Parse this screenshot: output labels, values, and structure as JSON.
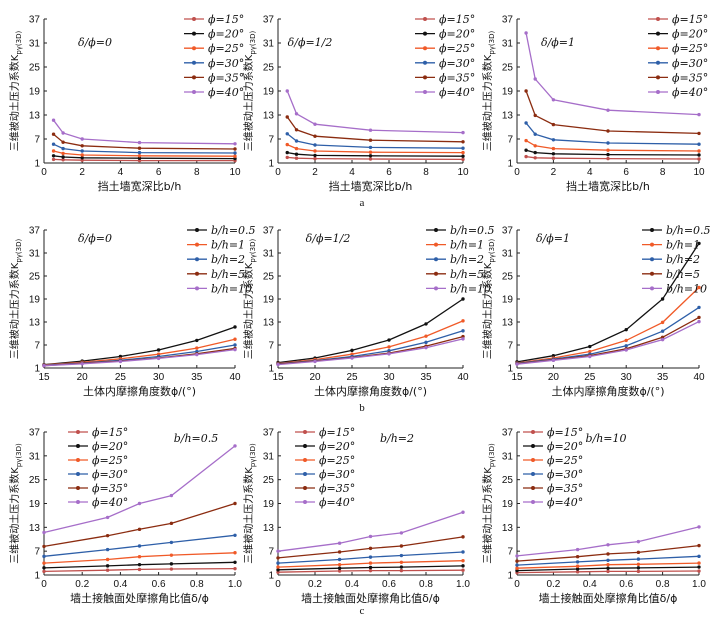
{
  "colors": {
    "s15": "#c0504d",
    "s20": "#111111",
    "s25": "#f05a28",
    "s30": "#2e5fa8",
    "s35": "#8b2c10",
    "s40": "#a66ec9",
    "bh05": "#111111",
    "bh1": "#f05a28",
    "bh2": "#2e5fa8",
    "bh5": "#8b2c10",
    "bh10": "#a66ec9",
    "axis": "#222222"
  },
  "subfigure_labels": [
    "a",
    "b",
    "c"
  ],
  "chart_data": [
    {
      "type": "line",
      "row": "a",
      "annotation": "δ/ϕ=0",
      "ylabel": "三维被动土压力系数K_pγ(3D)",
      "xlabel": "挡土墙宽深比b/h",
      "xlim": [
        0,
        10
      ],
      "ylim": [
        1,
        37
      ],
      "xticks": [
        0,
        2,
        4,
        6,
        8,
        10
      ],
      "yticks": [
        1,
        7,
        13,
        19,
        25,
        31,
        37
      ],
      "x": [
        0.5,
        1,
        2,
        5,
        10
      ],
      "series": [
        {
          "name": "ϕ=15°",
          "color_key": "s15",
          "values": [
            1.9,
            1.8,
            1.7,
            1.6,
            1.6
          ]
        },
        {
          "name": "ϕ=20°",
          "color_key": "s20",
          "values": [
            2.8,
            2.5,
            2.3,
            2.2,
            2.1
          ]
        },
        {
          "name": "ϕ=25°",
          "color_key": "s25",
          "values": [
            4.0,
            3.4,
            3.0,
            2.8,
            2.7
          ]
        },
        {
          "name": "ϕ=30°",
          "color_key": "s30",
          "values": [
            5.7,
            4.6,
            4.0,
            3.6,
            3.5
          ]
        },
        {
          "name": "ϕ=35°",
          "color_key": "s35",
          "values": [
            8.2,
            6.2,
            5.3,
            4.7,
            4.5
          ]
        },
        {
          "name": "ϕ=40°",
          "color_key": "s40",
          "values": [
            11.7,
            8.5,
            7.0,
            6.1,
            5.8
          ]
        }
      ]
    },
    {
      "type": "line",
      "row": "a",
      "annotation": "δ/ϕ=1/2",
      "ylabel": "三维被动土压力系数K_pγ(3D)",
      "xlabel": "挡土墙宽深比b/h",
      "xlim": [
        0,
        10
      ],
      "ylim": [
        1,
        37
      ],
      "xticks": [
        0,
        2,
        4,
        6,
        8,
        10
      ],
      "yticks": [
        1,
        7,
        13,
        19,
        25,
        31,
        37
      ],
      "x": [
        0.5,
        1,
        2,
        5,
        10
      ],
      "series": [
        {
          "name": "ϕ=15°",
          "color_key": "s15",
          "values": [
            2.4,
            2.2,
            2.1,
            2.0,
            1.9
          ]
        },
        {
          "name": "ϕ=20°",
          "color_key": "s20",
          "values": [
            3.6,
            3.2,
            2.9,
            2.8,
            2.7
          ]
        },
        {
          "name": "ϕ=25°",
          "color_key": "s25",
          "values": [
            5.6,
            4.6,
            4.0,
            3.7,
            3.6
          ]
        },
        {
          "name": "ϕ=30°",
          "color_key": "s30",
          "values": [
            8.3,
            6.5,
            5.5,
            4.9,
            4.7
          ]
        },
        {
          "name": "ϕ=35°",
          "color_key": "s35",
          "values": [
            12.5,
            9.3,
            7.7,
            6.7,
            6.3
          ]
        },
        {
          "name": "ϕ=40°",
          "color_key": "s40",
          "values": [
            19.0,
            13.3,
            10.7,
            9.2,
            8.6
          ]
        }
      ]
    },
    {
      "type": "line",
      "row": "a",
      "annotation": "δ/ϕ=1",
      "ylabel": "三维被动土压力系数K_pγ(3D)",
      "xlabel": "挡土墙宽深比b/h",
      "xlim": [
        0,
        10
      ],
      "ylim": [
        1,
        37
      ],
      "xticks": [
        0,
        2,
        4,
        6,
        8,
        10
      ],
      "yticks": [
        1,
        7,
        13,
        19,
        25,
        31,
        37
      ],
      "x": [
        0.5,
        1,
        2,
        5,
        10
      ],
      "series": [
        {
          "name": "ϕ=15°",
          "color_key": "s15",
          "values": [
            2.6,
            2.3,
            2.2,
            2.1,
            2.0
          ]
        },
        {
          "name": "ϕ=20°",
          "color_key": "s20",
          "values": [
            4.2,
            3.6,
            3.3,
            3.1,
            3.0
          ]
        },
        {
          "name": "ϕ=25°",
          "color_key": "s25",
          "values": [
            6.6,
            5.3,
            4.6,
            4.2,
            4.0
          ]
        },
        {
          "name": "ϕ=30°",
          "color_key": "s30",
          "values": [
            11.0,
            8.2,
            6.8,
            6.0,
            5.7
          ]
        },
        {
          "name": "ϕ=35°",
          "color_key": "s35",
          "values": [
            19.0,
            12.9,
            10.6,
            9.0,
            8.4
          ]
        },
        {
          "name": "ϕ=40°",
          "color_key": "s40",
          "values": [
            33.5,
            22.0,
            16.8,
            14.2,
            13.1
          ]
        }
      ]
    },
    {
      "type": "line",
      "row": "b",
      "annotation": "δ/ϕ=0",
      "ylabel": "三维被动土压力系数K_pγ(3D)",
      "xlabel": "土体内摩擦角度数ϕ/(°)",
      "xlim": [
        15,
        40
      ],
      "ylim": [
        1,
        37
      ],
      "xticks": [
        15,
        20,
        25,
        30,
        35,
        40
      ],
      "yticks": [
        1,
        7,
        13,
        19,
        25,
        31,
        37
      ],
      "x": [
        15,
        20,
        25,
        30,
        35,
        40
      ],
      "series": [
        {
          "name": "b/h=0.5",
          "color_key": "bh05",
          "values": [
            1.9,
            2.8,
            4.0,
            5.7,
            8.2,
            11.7
          ]
        },
        {
          "name": "b/h=1",
          "color_key": "bh1",
          "values": [
            1.8,
            2.5,
            3.4,
            4.6,
            6.2,
            8.5
          ]
        },
        {
          "name": "b/h=2",
          "color_key": "bh2",
          "values": [
            1.7,
            2.3,
            3.0,
            4.0,
            5.3,
            7.0
          ]
        },
        {
          "name": "b/h=5",
          "color_key": "bh5",
          "values": [
            1.6,
            2.2,
            2.8,
            3.6,
            4.7,
            6.1
          ]
        },
        {
          "name": "b/h=10",
          "color_key": "bh10",
          "values": [
            1.6,
            2.1,
            2.7,
            3.5,
            4.5,
            5.8
          ]
        }
      ]
    },
    {
      "type": "line",
      "row": "b",
      "annotation": "δ/ϕ=1/2",
      "ylabel": "三维被动土压力系数K_pγ(3D)",
      "xlabel": "土体内摩擦角度数ϕ/(°)",
      "xlim": [
        15,
        40
      ],
      "ylim": [
        1,
        37
      ],
      "xticks": [
        15,
        20,
        25,
        30,
        35,
        40
      ],
      "yticks": [
        1,
        7,
        13,
        19,
        25,
        31,
        37
      ],
      "x": [
        15,
        20,
        25,
        30,
        35,
        40
      ],
      "series": [
        {
          "name": "b/h=0.5",
          "color_key": "bh05",
          "values": [
            2.4,
            3.6,
            5.6,
            8.3,
            12.5,
            19.0
          ]
        },
        {
          "name": "b/h=1",
          "color_key": "bh1",
          "values": [
            2.2,
            3.2,
            4.6,
            6.5,
            9.3,
            13.3
          ]
        },
        {
          "name": "b/h=2",
          "color_key": "bh2",
          "values": [
            2.1,
            2.9,
            4.0,
            5.5,
            7.7,
            10.7
          ]
        },
        {
          "name": "b/h=5",
          "color_key": "bh5",
          "values": [
            2.0,
            2.8,
            3.7,
            4.9,
            6.7,
            9.2
          ]
        },
        {
          "name": "b/h=10",
          "color_key": "bh10",
          "values": [
            1.9,
            2.7,
            3.6,
            4.7,
            6.3,
            8.6
          ]
        }
      ]
    },
    {
      "type": "line",
      "row": "b",
      "annotation": "δ/ϕ=1",
      "ylabel": "三维被动土压力系数K_pγ(3D)",
      "xlabel": "土体内摩擦角度数ϕ/(°)",
      "xlim": [
        15,
        40
      ],
      "ylim": [
        1,
        37
      ],
      "xticks": [
        15,
        20,
        25,
        30,
        35,
        40
      ],
      "yticks": [
        1,
        7,
        13,
        19,
        25,
        31,
        37
      ],
      "x": [
        15,
        20,
        25,
        30,
        35,
        40
      ],
      "series": [
        {
          "name": "b/h=0.5",
          "color_key": "bh05",
          "values": [
            2.6,
            4.2,
            6.6,
            11.0,
            19.0,
            33.5
          ]
        },
        {
          "name": "b/h=1",
          "color_key": "bh1",
          "values": [
            2.3,
            3.6,
            5.3,
            8.2,
            12.9,
            22.0
          ]
        },
        {
          "name": "b/h=2",
          "color_key": "bh2",
          "values": [
            2.2,
            3.3,
            4.6,
            6.8,
            10.6,
            16.8
          ]
        },
        {
          "name": "b/h=5",
          "color_key": "bh5",
          "values": [
            2.1,
            3.1,
            4.2,
            6.0,
            9.0,
            14.2
          ]
        },
        {
          "name": "b/h=10",
          "color_key": "bh10",
          "values": [
            2.0,
            3.0,
            4.0,
            5.7,
            8.4,
            13.1
          ]
        }
      ]
    },
    {
      "type": "line",
      "row": "c",
      "annotation": "b/h=0.5",
      "ylabel": "三维被动土压力系数K_pγ(3D)",
      "xlabel": "墙土接触面处摩擦角比值δ/ϕ",
      "xlim": [
        0,
        1
      ],
      "ylim": [
        1,
        37
      ],
      "xticks": [
        0,
        0.2,
        0.4,
        0.6,
        0.8,
        1.0
      ],
      "xtick_labels": [
        "0",
        "0.2",
        "0.4",
        "0.6",
        "0.8",
        "1.0"
      ],
      "yticks": [
        1,
        7,
        13,
        19,
        25,
        31,
        37
      ],
      "x": [
        0,
        0.333,
        0.5,
        0.667,
        1
      ],
      "series": [
        {
          "name": "ϕ=15°",
          "color_key": "s15",
          "values": [
            1.9,
            2.2,
            2.4,
            2.5,
            2.6
          ]
        },
        {
          "name": "ϕ=20°",
          "color_key": "s20",
          "values": [
            2.8,
            3.3,
            3.6,
            3.8,
            4.2
          ]
        },
        {
          "name": "ϕ=25°",
          "color_key": "s25",
          "values": [
            4.0,
            4.9,
            5.6,
            6.0,
            6.6
          ]
        },
        {
          "name": "ϕ=30°",
          "color_key": "s30",
          "values": [
            5.7,
            7.4,
            8.3,
            9.2,
            11.0
          ]
        },
        {
          "name": "ϕ=35°",
          "color_key": "s35",
          "values": [
            8.2,
            10.9,
            12.5,
            14.0,
            19.0
          ]
        },
        {
          "name": "ϕ=40°",
          "color_key": "s40",
          "values": [
            11.7,
            15.5,
            19.0,
            21.0,
            33.5
          ]
        }
      ]
    },
    {
      "type": "line",
      "row": "c",
      "annotation": "b/h=2",
      "ylabel": "三维被动土压力系数K_pγ(3D)",
      "xlabel": "墙土接触面处摩擦角比值δ/ϕ",
      "xlim": [
        0,
        1
      ],
      "ylim": [
        1,
        37
      ],
      "xticks": [
        0,
        0.2,
        0.4,
        0.6,
        0.8,
        1.0
      ],
      "xtick_labels": [
        "0",
        "0.2",
        "0.4",
        "0.6",
        "0.8",
        "1.0"
      ],
      "yticks": [
        1,
        7,
        13,
        19,
        25,
        31,
        37
      ],
      "x": [
        0,
        0.333,
        0.5,
        0.667,
        1
      ],
      "series": [
        {
          "name": "ϕ=15°",
          "color_key": "s15",
          "values": [
            1.7,
            2.0,
            2.1,
            2.1,
            2.2
          ]
        },
        {
          "name": "ϕ=20°",
          "color_key": "s20",
          "values": [
            2.3,
            2.7,
            2.9,
            3.0,
            3.3
          ]
        },
        {
          "name": "ϕ=25°",
          "color_key": "s25",
          "values": [
            3.0,
            3.6,
            4.0,
            4.2,
            4.6
          ]
        },
        {
          "name": "ϕ=30°",
          "color_key": "s30",
          "values": [
            4.0,
            4.9,
            5.5,
            5.9,
            6.8
          ]
        },
        {
          "name": "ϕ=35°",
          "color_key": "s35",
          "values": [
            5.3,
            6.8,
            7.7,
            8.3,
            10.6
          ]
        },
        {
          "name": "ϕ=40°",
          "color_key": "s40",
          "values": [
            7.0,
            9.0,
            10.7,
            11.6,
            16.8
          ]
        }
      ]
    },
    {
      "type": "line",
      "row": "c",
      "annotation": "b/h=10",
      "ylabel": "三维被动土压力系数K_pγ(3D)",
      "xlabel": "墙土接触面处摩擦角比值δ/ϕ",
      "xlim": [
        0,
        1
      ],
      "ylim": [
        1,
        37
      ],
      "xticks": [
        0,
        0.2,
        0.4,
        0.6,
        0.8,
        1.0
      ],
      "xtick_labels": [
        "0",
        "0.2",
        "0.4",
        "0.6",
        "0.8",
        "1.0"
      ],
      "yticks": [
        1,
        7,
        13,
        19,
        25,
        31,
        37
      ],
      "x": [
        0,
        0.333,
        0.5,
        0.667,
        1
      ],
      "series": [
        {
          "name": "ϕ=15°",
          "color_key": "s15",
          "values": [
            1.6,
            1.8,
            1.9,
            1.9,
            2.0
          ]
        },
        {
          "name": "ϕ=20°",
          "color_key": "s20",
          "values": [
            2.1,
            2.5,
            2.7,
            2.8,
            3.0
          ]
        },
        {
          "name": "ϕ=25°",
          "color_key": "s25",
          "values": [
            2.7,
            3.2,
            3.6,
            3.7,
            4.0
          ]
        },
        {
          "name": "ϕ=30°",
          "color_key": "s30",
          "values": [
            3.5,
            4.3,
            4.7,
            5.0,
            5.7
          ]
        },
        {
          "name": "ϕ=35°",
          "color_key": "s35",
          "values": [
            4.5,
            5.6,
            6.3,
            6.7,
            8.4
          ]
        },
        {
          "name": "ϕ=40°",
          "color_key": "s40",
          "values": [
            5.8,
            7.4,
            8.6,
            9.4,
            13.1
          ]
        }
      ]
    }
  ]
}
